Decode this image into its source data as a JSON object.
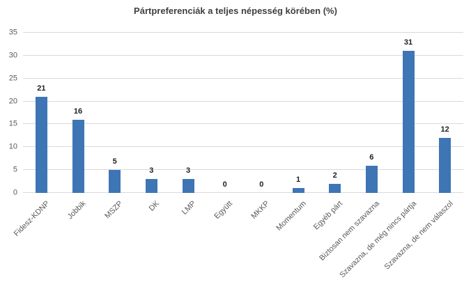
{
  "title": "Pártpreferenciák a teljes népesség körében (%)",
  "colors": {
    "bar": "#3E75B5",
    "gridline": "#D9D9D9",
    "title": "#3F3F3F",
    "axis_label": "#595959",
    "value_label": "#1F1F1F",
    "background": "#FFFFFF"
  },
  "chart_data": {
    "type": "bar",
    "title": "Pártpreferenciák a teljes népesség körében (%)",
    "categories": [
      "Fidesz-KDNP",
      "Jobbik",
      "MSZP",
      "DK",
      "LMP",
      "Együtt",
      "MKKP",
      "Momentum",
      "Egyéb párt",
      "Biztosan nem szavazna",
      "Szavazna, de még nincs pártja",
      "Szavazna, de nem válaszol"
    ],
    "values": [
      21,
      16,
      5,
      3,
      3,
      0,
      0,
      1,
      2,
      6,
      31,
      12
    ],
    "xlabel": "",
    "ylabel": "",
    "ylim": [
      0,
      35
    ],
    "yticks": [
      0,
      5,
      10,
      15,
      20,
      25,
      30,
      35
    ],
    "grid": true,
    "legend": false,
    "data_labels": true,
    "bar_color": "#3E75B5",
    "x_tick_rotation_deg": 45
  }
}
